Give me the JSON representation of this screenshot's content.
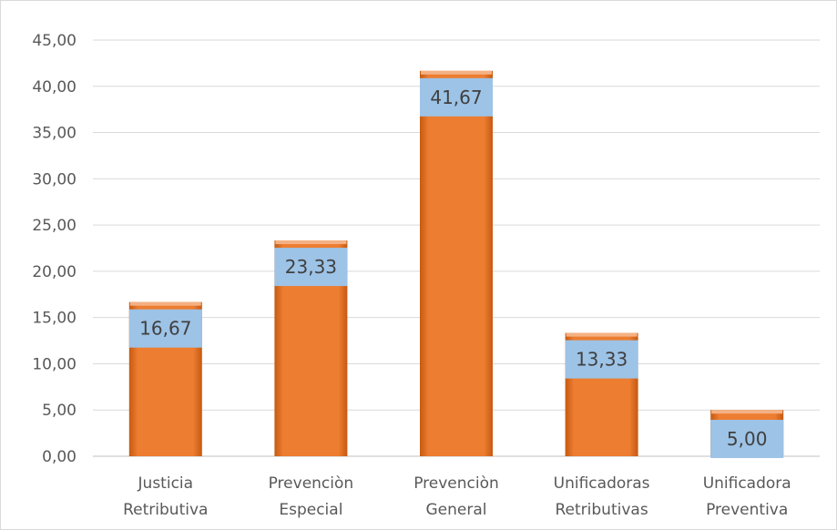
{
  "chart_data": {
    "type": "bar",
    "categories": [
      [
        "Justicia",
        "Retributiva"
      ],
      [
        "Prevenciòn",
        "Especial"
      ],
      [
        "Prevenciòn",
        "General"
      ],
      [
        "Unificadoras",
        "Retributivas"
      ],
      [
        "Unificadora",
        "Preventiva"
      ]
    ],
    "values": [
      16.67,
      23.33,
      41.67,
      13.33,
      5.0
    ],
    "data_labels": [
      "16,67",
      "23,33",
      "41,67",
      "13,33",
      "5,00"
    ],
    "y_ticks": [
      "0,00",
      "5,00",
      "10,00",
      "15,00",
      "20,00",
      "25,00",
      "30,00",
      "35,00",
      "40,00",
      "45,00"
    ],
    "ylim": [
      0,
      45
    ],
    "grid": true,
    "title": "",
    "xlabel": "",
    "ylabel": "",
    "colors": {
      "bar": "#ed7d31",
      "bar_dark": "#c55a11",
      "bar_top": "#f4b183",
      "label_box": "#9dc3e6",
      "grid": "#d9d9d9",
      "axis": "#bfbfbf"
    }
  }
}
